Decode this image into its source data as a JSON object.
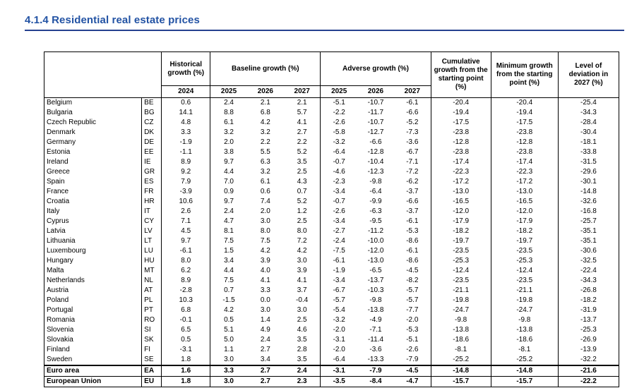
{
  "page": {
    "title": "4.1.4 Residential real estate prices"
  },
  "colors": {
    "title-color": "#2353a4",
    "rule-color": "#26418f",
    "table-border": "#000000"
  },
  "table": {
    "group_headers": {
      "historical": "Historical growth (%)",
      "baseline": "Baseline growth (%)",
      "adverse": "Adverse growth (%)",
      "cumulative": "Cumulative growth from the starting point (%)",
      "minimum": "Minimum growth from the starting point (%)",
      "deviation": "Level of deviation in 2027 (%)"
    },
    "year_headers": {
      "historical": "2024",
      "baseline": [
        "2025",
        "2026",
        "2027"
      ],
      "adverse": [
        "2025",
        "2026",
        "2027"
      ]
    },
    "rows": [
      {
        "country": "Belgium",
        "code": "BE",
        "bold": false,
        "values": [
          "0.6",
          "2.4",
          "2.1",
          "2.1",
          "-5.1",
          "-10.7",
          "-6.1",
          "-20.4",
          "-20.4",
          "-25.4"
        ]
      },
      {
        "country": "Bulgaria",
        "code": "BG",
        "bold": false,
        "values": [
          "14.1",
          "8.8",
          "6.8",
          "5.7",
          "-2.2",
          "-11.7",
          "-6.6",
          "-19.4",
          "-19.4",
          "-34.3"
        ]
      },
      {
        "country": "Czech Republic",
        "code": "CZ",
        "bold": false,
        "values": [
          "4.8",
          "6.1",
          "4.2",
          "4.1",
          "-2.6",
          "-10.7",
          "-5.2",
          "-17.5",
          "-17.5",
          "-28.4"
        ]
      },
      {
        "country": "Denmark",
        "code": "DK",
        "bold": false,
        "values": [
          "3.3",
          "3.2",
          "3.2",
          "2.7",
          "-5.8",
          "-12.7",
          "-7.3",
          "-23.8",
          "-23.8",
          "-30.4"
        ]
      },
      {
        "country": "Germany",
        "code": "DE",
        "bold": false,
        "values": [
          "-1.9",
          "2.0",
          "2.2",
          "2.2",
          "-3.2",
          "-6.6",
          "-3.6",
          "-12.8",
          "-12.8",
          "-18.1"
        ]
      },
      {
        "country": "Estonia",
        "code": "EE",
        "bold": false,
        "values": [
          "-1.1",
          "3.8",
          "5.5",
          "5.2",
          "-6.4",
          "-12.8",
          "-6.7",
          "-23.8",
          "-23.8",
          "-33.8"
        ]
      },
      {
        "country": "Ireland",
        "code": "IE",
        "bold": false,
        "values": [
          "8.9",
          "9.7",
          "6.3",
          "3.5",
          "-0.7",
          "-10.4",
          "-7.1",
          "-17.4",
          "-17.4",
          "-31.5"
        ]
      },
      {
        "country": "Greece",
        "code": "GR",
        "bold": false,
        "values": [
          "9.2",
          "4.4",
          "3.2",
          "2.5",
          "-4.6",
          "-12.3",
          "-7.2",
          "-22.3",
          "-22.3",
          "-29.6"
        ]
      },
      {
        "country": "Spain",
        "code": "ES",
        "bold": false,
        "values": [
          "7.9",
          "7.0",
          "6.1",
          "4.3",
          "-2.3",
          "-9.8",
          "-6.2",
          "-17.2",
          "-17.2",
          "-30.1"
        ]
      },
      {
        "country": "France",
        "code": "FR",
        "bold": false,
        "values": [
          "-3.9",
          "0.9",
          "0.6",
          "0.7",
          "-3.4",
          "-6.4",
          "-3.7",
          "-13.0",
          "-13.0",
          "-14.8"
        ]
      },
      {
        "country": "Croatia",
        "code": "HR",
        "bold": false,
        "values": [
          "10.6",
          "9.7",
          "7.4",
          "5.2",
          "-0.7",
          "-9.9",
          "-6.6",
          "-16.5",
          "-16.5",
          "-32.6"
        ]
      },
      {
        "country": "Italy",
        "code": "IT",
        "bold": false,
        "values": [
          "2.6",
          "2.4",
          "2.0",
          "1.2",
          "-2.6",
          "-6.3",
          "-3.7",
          "-12.0",
          "-12.0",
          "-16.8"
        ]
      },
      {
        "country": "Cyprus",
        "code": "CY",
        "bold": false,
        "values": [
          "7.1",
          "4.7",
          "3.0",
          "2.5",
          "-3.4",
          "-9.5",
          "-6.1",
          "-17.9",
          "-17.9",
          "-25.7"
        ]
      },
      {
        "country": "Latvia",
        "code": "LV",
        "bold": false,
        "values": [
          "4.5",
          "8.1",
          "8.0",
          "8.0",
          "-2.7",
          "-11.2",
          "-5.3",
          "-18.2",
          "-18.2",
          "-35.1"
        ]
      },
      {
        "country": "Lithuania",
        "code": "LT",
        "bold": false,
        "values": [
          "9.7",
          "7.5",
          "7.5",
          "7.2",
          "-2.4",
          "-10.0",
          "-8.6",
          "-19.7",
          "-19.7",
          "-35.1"
        ]
      },
      {
        "country": "Luxembourg",
        "code": "LU",
        "bold": false,
        "values": [
          "-6.1",
          "1.5",
          "4.2",
          "4.2",
          "-7.5",
          "-12.0",
          "-6.1",
          "-23.5",
          "-23.5",
          "-30.6"
        ]
      },
      {
        "country": "Hungary",
        "code": "HU",
        "bold": false,
        "values": [
          "8.0",
          "3.4",
          "3.9",
          "3.0",
          "-6.1",
          "-13.0",
          "-8.6",
          "-25.3",
          "-25.3",
          "-32.5"
        ]
      },
      {
        "country": "Malta",
        "code": "MT",
        "bold": false,
        "values": [
          "6.2",
          "4.4",
          "4.0",
          "3.9",
          "-1.9",
          "-6.5",
          "-4.5",
          "-12.4",
          "-12.4",
          "-22.4"
        ]
      },
      {
        "country": "Netherlands",
        "code": "NL",
        "bold": false,
        "values": [
          "8.9",
          "7.5",
          "4.1",
          "4.1",
          "-3.4",
          "-13.7",
          "-8.2",
          "-23.5",
          "-23.5",
          "-34.3"
        ]
      },
      {
        "country": "Austria",
        "code": "AT",
        "bold": false,
        "values": [
          "-2.8",
          "0.7",
          "3.3",
          "3.7",
          "-6.7",
          "-10.3",
          "-5.7",
          "-21.1",
          "-21.1",
          "-26.8"
        ]
      },
      {
        "country": "Poland",
        "code": "PL",
        "bold": false,
        "values": [
          "10.3",
          "-1.5",
          "0.0",
          "-0.4",
          "-5.7",
          "-9.8",
          "-5.7",
          "-19.8",
          "-19.8",
          "-18.2"
        ]
      },
      {
        "country": "Portugal",
        "code": "PT",
        "bold": false,
        "values": [
          "6.8",
          "4.2",
          "3.0",
          "3.0",
          "-5.4",
          "-13.8",
          "-7.7",
          "-24.7",
          "-24.7",
          "-31.9"
        ]
      },
      {
        "country": "Romania",
        "code": "RO",
        "bold": false,
        "values": [
          "-0.1",
          "0.5",
          "1.4",
          "2.5",
          "-3.2",
          "-4.9",
          "-2.0",
          "-9.8",
          "-9.8",
          "-13.7"
        ]
      },
      {
        "country": "Slovenia",
        "code": "SI",
        "bold": false,
        "values": [
          "6.5",
          "5.1",
          "4.9",
          "4.6",
          "-2.0",
          "-7.1",
          "-5.3",
          "-13.8",
          "-13.8",
          "-25.3"
        ]
      },
      {
        "country": "Slovakia",
        "code": "SK",
        "bold": false,
        "values": [
          "0.5",
          "5.0",
          "2.4",
          "3.5",
          "-3.1",
          "-11.4",
          "-5.1",
          "-18.6",
          "-18.6",
          "-26.9"
        ]
      },
      {
        "country": "Finland",
        "code": "FI",
        "bold": false,
        "values": [
          "-3.1",
          "1.1",
          "2.7",
          "2.8",
          "-2.0",
          "-3.6",
          "-2.6",
          "-8.1",
          "-8.1",
          "-13.9"
        ]
      },
      {
        "country": "Sweden",
        "code": "SE",
        "bold": false,
        "values": [
          "1.8",
          "3.0",
          "3.4",
          "3.5",
          "-6.4",
          "-13.3",
          "-7.9",
          "-25.2",
          "-25.2",
          "-32.2"
        ]
      },
      {
        "country": "Euro area",
        "code": "EA",
        "bold": true,
        "values": [
          "1.6",
          "3.3",
          "2.7",
          "2.4",
          "-3.1",
          "-7.9",
          "-4.5",
          "-14.8",
          "-14.8",
          "-21.6"
        ]
      },
      {
        "country": "European Union",
        "code": "EU",
        "bold": true,
        "values": [
          "1.8",
          "3.0",
          "2.7",
          "2.3",
          "-3.5",
          "-8.4",
          "-4.7",
          "-15.7",
          "-15.7",
          "-22.2"
        ]
      }
    ]
  }
}
